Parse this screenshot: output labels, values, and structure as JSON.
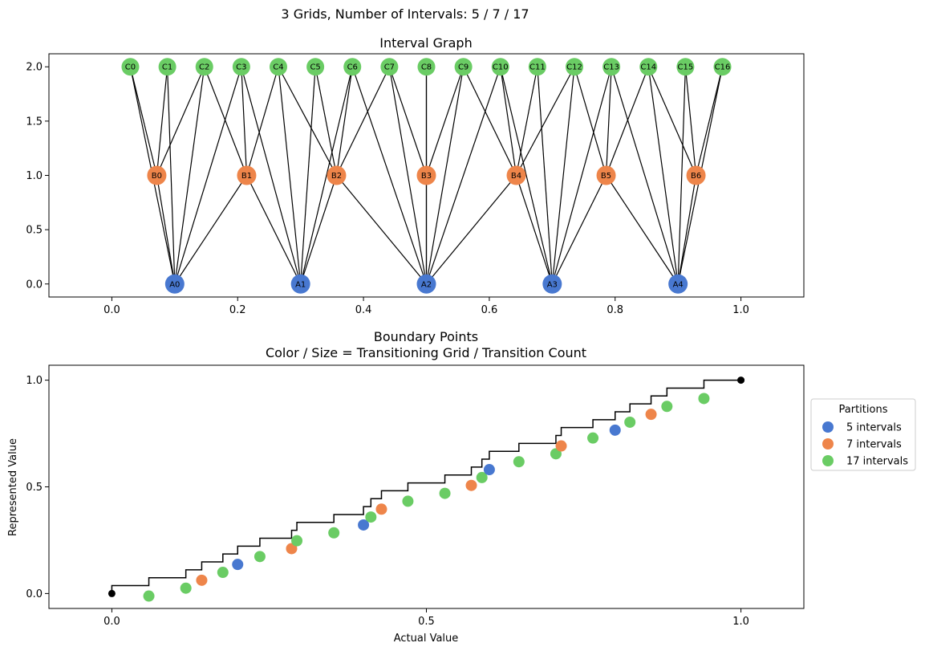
{
  "figure": {
    "suptitle": "3 Grids, Number of Intervals: 5 / 7 / 17"
  },
  "chart_data": [
    {
      "type": "network",
      "title": "Interval Graph",
      "xlim": [
        -0.1,
        1.1
      ],
      "ylim": [
        -0.12,
        2.12
      ],
      "xticks": [
        0.0,
        0.2,
        0.4,
        0.6,
        0.8,
        1.0
      ],
      "xtick_labels": [
        "0.0",
        "0.2",
        "0.4",
        "0.6",
        "0.8",
        "1.0"
      ],
      "yticks": [
        0.0,
        0.5,
        1.0,
        1.5,
        2.0
      ],
      "ytick_labels": [
        "0.0",
        "0.5",
        "1.0",
        "1.5",
        "2.0"
      ],
      "grid": false,
      "layers": [
        {
          "prefix": "A",
          "count": 5,
          "y": 0.0,
          "color": "#4878d0"
        },
        {
          "prefix": "B",
          "count": 7,
          "y": 1.0,
          "color": "#ee854a"
        },
        {
          "prefix": "C",
          "count": 17,
          "y": 2.0,
          "color": "#6acc64"
        }
      ],
      "edges": "interval overlap between grid levels"
    },
    {
      "type": "scatter",
      "title": "Boundary Points\nColor / Size = Transitioning Grid / Transition Count",
      "xlabel": "Actual Value",
      "ylabel": "Represented Value",
      "xlim": [
        -0.1,
        1.1
      ],
      "ylim": [
        -0.07,
        1.07
      ],
      "xticks": [
        0.0,
        0.5,
        1.0
      ],
      "xtick_labels": [
        "0.0",
        "0.5",
        "1.0"
      ],
      "yticks": [
        0.0,
        0.5,
        1.0
      ],
      "ytick_labels": [
        "0.0",
        "0.5",
        "1.0"
      ],
      "grid": false,
      "step_line": {
        "color": "#000000"
      },
      "endpoints": [
        [
          0.0,
          0.0
        ],
        [
          1.0,
          1.0
        ]
      ],
      "legend": {
        "title": "Partitions",
        "placement": "right-outside"
      },
      "series": [
        {
          "name": "5 intervals",
          "color": "#4878d0",
          "intervals": 5
        },
        {
          "name": "7 intervals",
          "color": "#ee854a",
          "intervals": 7
        },
        {
          "name": "17 intervals",
          "color": "#6acc64",
          "intervals": 17
        }
      ]
    }
  ]
}
